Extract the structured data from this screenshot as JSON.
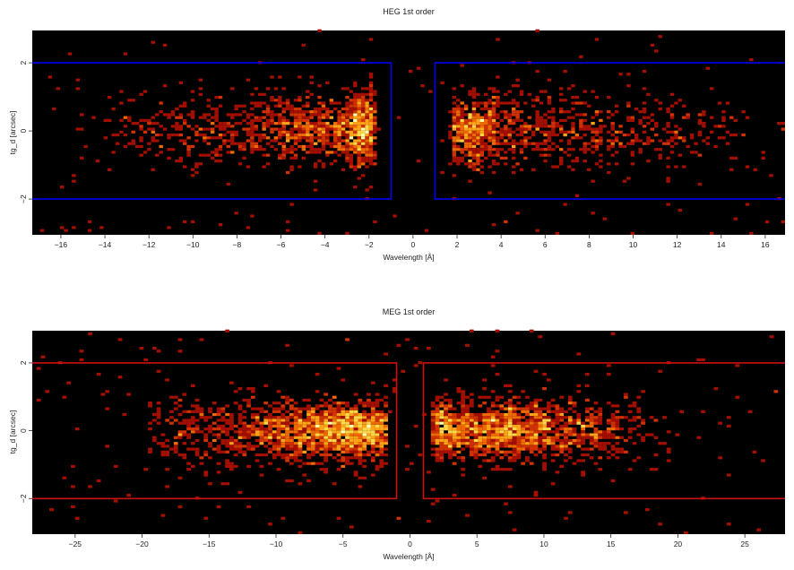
{
  "chart_data": [
    {
      "type": "heatmap",
      "id": "heg",
      "title": "HEG 1st order",
      "xlabel": "Wavelength [Å]",
      "ylabel": "tg_d [arcsec]",
      "xlim": [
        -17.3,
        16.9
      ],
      "ylim": [
        -3.05,
        2.95
      ],
      "xticks": [
        -16,
        -14,
        -12,
        -10,
        -8,
        -6,
        -4,
        -2,
        0,
        2,
        4,
        6,
        8,
        10,
        12,
        14,
        16
      ],
      "xtick_labels": [
        "−16",
        "−14",
        "−12",
        "−10",
        "−8",
        "−6",
        "−4",
        "−2",
        "0",
        "2",
        "4",
        "6",
        "8",
        "10",
        "12",
        "14",
        "16"
      ],
      "yticks": [
        -2,
        0,
        2
      ],
      "ytick_labels": [
        "−2",
        "0",
        "2"
      ],
      "regions": [
        {
          "xmin": -17.3,
          "xmax": -1.0,
          "ymin": -2.0,
          "ymax": 2.0
        },
        {
          "xmin": 1.0,
          "xmax": 16.9,
          "ymin": -2.0,
          "ymax": 2.0
        }
      ],
      "region_color": "#0000ee",
      "background_color": "#000000",
      "colormap": [
        "#5a0000",
        "#a50f00",
        "#d23200",
        "#ef6a00",
        "#ffa318",
        "#ffd84a",
        "#ffffb0"
      ],
      "clumps": [
        {
          "x": -2.2,
          "y": 0.1,
          "sx": 0.45,
          "sy": 0.55,
          "w": 5
        },
        {
          "x": -3.5,
          "y": 0.0,
          "sx": 1.0,
          "sy": 0.5,
          "w": 3
        },
        {
          "x": -5.5,
          "y": 0.1,
          "sx": 1.2,
          "sy": 0.5,
          "w": 2.5
        },
        {
          "x": -8.5,
          "y": 0.0,
          "sx": 1.6,
          "sy": 0.55,
          "w": 2
        },
        {
          "x": -11.5,
          "y": 0.0,
          "sx": 1.6,
          "sy": 0.5,
          "w": 1
        },
        {
          "x": 2.5,
          "y": 0.0,
          "sx": 0.7,
          "sy": 0.5,
          "w": 4.5
        },
        {
          "x": 4.3,
          "y": 0.1,
          "sx": 1.2,
          "sy": 0.5,
          "w": 2.5
        },
        {
          "x": 7.2,
          "y": 0.05,
          "sx": 1.6,
          "sy": 0.55,
          "w": 2
        },
        {
          "x": 10.5,
          "y": 0.0,
          "sx": 1.5,
          "sy": 0.5,
          "w": 1
        },
        {
          "x": 13.0,
          "y": 0.0,
          "sx": 1.2,
          "sy": 0.5,
          "w": 0.5
        }
      ],
      "clump_range": [
        -15.2,
        15.2
      ],
      "gap": [
        -1.75,
        1.75
      ],
      "n_events": 2600,
      "bin_x": 0.18,
      "bin_y": 0.085,
      "n_scatter": 180,
      "seed": 13
    },
    {
      "type": "heatmap",
      "id": "meg",
      "title": "MEG 1st order",
      "xlabel": "Wavelength [Å]",
      "ylabel": "tg_d [arcsec]",
      "xlim": [
        -28.2,
        28.0
      ],
      "ylim": [
        -3.05,
        2.95
      ],
      "xticks": [
        -25,
        -20,
        -15,
        -10,
        -5,
        0,
        5,
        10,
        15,
        20,
        25
      ],
      "xtick_labels": [
        "−25",
        "−20",
        "−15",
        "−10",
        "−5",
        "0",
        "5",
        "10",
        "15",
        "20",
        "25"
      ],
      "yticks": [
        -2,
        0,
        2
      ],
      "ytick_labels": [
        "−2",
        "0",
        "2"
      ],
      "regions": [
        {
          "xmin": -28.2,
          "xmax": -1.0,
          "ymin": -2.0,
          "ymax": 2.0
        },
        {
          "xmin": 1.0,
          "xmax": 28.0,
          "ymin": -2.0,
          "ymax": 2.0
        }
      ],
      "region_color": "#cc1111",
      "background_color": "#000000",
      "colormap": [
        "#5a0000",
        "#a50f00",
        "#d23200",
        "#ef6a00",
        "#ffa318",
        "#ffd84a",
        "#ffffb0"
      ],
      "clumps": [
        {
          "x": -3.0,
          "y": 0.0,
          "sx": 1.2,
          "sy": 0.45,
          "w": 4
        },
        {
          "x": -5.5,
          "y": 0.0,
          "sx": 1.2,
          "sy": 0.45,
          "w": 3
        },
        {
          "x": -8.5,
          "y": 0.0,
          "sx": 2.0,
          "sy": 0.45,
          "w": 4
        },
        {
          "x": -13.0,
          "y": 0.0,
          "sx": 2.5,
          "sy": 0.5,
          "w": 2
        },
        {
          "x": -17.5,
          "y": 0.0,
          "sx": 1.5,
          "sy": 0.55,
          "w": 0.5
        },
        {
          "x": 2.5,
          "y": 0.0,
          "sx": 1.0,
          "sy": 0.45,
          "w": 3.5
        },
        {
          "x": 6.5,
          "y": 0.0,
          "sx": 1.8,
          "sy": 0.45,
          "w": 5
        },
        {
          "x": 10.0,
          "y": 0.0,
          "sx": 1.8,
          "sy": 0.45,
          "w": 2.5
        },
        {
          "x": 13.5,
          "y": 0.0,
          "sx": 1.5,
          "sy": 0.45,
          "w": 1.5
        },
        {
          "x": 17.0,
          "y": 0.0,
          "sx": 1.5,
          "sy": 0.5,
          "w": 0.4
        }
      ],
      "clump_range": [
        -19.5,
        19.5
      ],
      "gap": [
        -1.7,
        1.7
      ],
      "n_events": 3600,
      "bin_x": 0.32,
      "bin_y": 0.085,
      "n_scatter": 200,
      "seed": 29
    }
  ]
}
